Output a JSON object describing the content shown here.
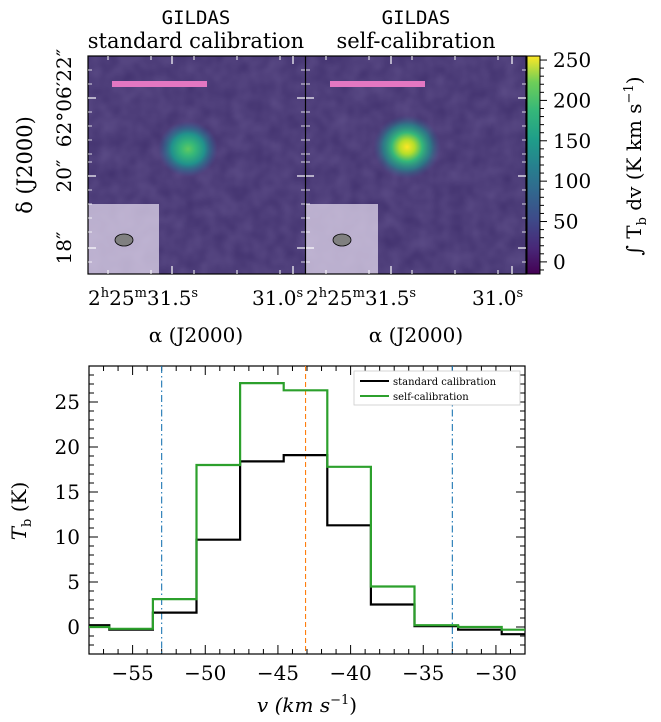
{
  "chart_data": [
    {
      "type": "heatmap",
      "panels": [
        {
          "title_line1": "GILDAS",
          "title_line2": "standard calibration",
          "peak": 150
        },
        {
          "title_line1": "GILDAS",
          "title_line2": "self-calibration",
          "peak": 250
        }
      ],
      "dec_ticks": [
        "62°06′22″",
        "20″",
        "18″"
      ],
      "ra_ticks": [
        {
          "h": "2",
          "m": "25",
          "s": "31.5",
          "hs": "h",
          "ms": "m",
          "ss": "s"
        },
        {
          "s": "31.0",
          "ss": "s"
        }
      ],
      "xlabel": "α (J2000)",
      "ylabel": "δ (J2000)",
      "colorbar": {
        "label": "∫ T",
        "label_sub": "b",
        "label_tail": " dv (K km s",
        "label_sup": "−1",
        "label_end": ")",
        "range": [
          -15,
          255
        ],
        "ticks": [
          0,
          50,
          100,
          150,
          200,
          250
        ],
        "colors": {
          "low": "#440154",
          "mid": "#21918c",
          "high": "#fde725"
        }
      },
      "scale_bar_color": "#e377c2"
    },
    {
      "type": "line",
      "step": true,
      "xlabel_main": "v (km s",
      "xlabel_sup": "−1",
      "xlabel_end": ")",
      "ylabel_main": "T",
      "ylabel_sub": "b",
      "ylabel_end": " (K)",
      "xlim": [
        -58,
        -28
      ],
      "ylim": [
        -3,
        29
      ],
      "xticks": [
        -55,
        -50,
        -45,
        -40,
        -35,
        -30
      ],
      "yticks": [
        0,
        5,
        10,
        15,
        20,
        25
      ],
      "tick_labels_x": [
        "−55",
        "−50",
        "−45",
        "−40",
        "−35",
        "−30"
      ],
      "tick_labels_y": [
        "0",
        "5",
        "10",
        "15",
        "20",
        "25"
      ],
      "x": [
        -58,
        -55.5,
        -52.5,
        -49.5,
        -46.5,
        -43.5,
        -40.5,
        -37.5,
        -34.5,
        -31.5,
        -28.5
      ],
      "bin_edges": [
        -58,
        -56.6,
        -53.6,
        -50.6,
        -47.6,
        -44.6,
        -41.6,
        -38.6,
        -35.6,
        -32.6,
        -29.6,
        -28
      ],
      "series": [
        {
          "name": "standard calibration",
          "color": "#000000",
          "values": [
            0.2,
            -0.3,
            1.6,
            9.7,
            18.4,
            19.1,
            11.3,
            2.5,
            0.1,
            -0.3,
            -0.8
          ]
        },
        {
          "name": "self-calibration",
          "color": "#2ca02c",
          "values": [
            0.0,
            -0.2,
            3.1,
            18.0,
            27.1,
            26.3,
            17.8,
            4.5,
            0.2,
            0.0,
            -0.3
          ]
        }
      ],
      "vlines": [
        {
          "x": -53.0,
          "style": "dashdot",
          "color": "#1f77b4"
        },
        {
          "x": -33.0,
          "style": "dashdot",
          "color": "#1f77b4"
        },
        {
          "x": -43.1,
          "style": "dashed",
          "color": "#ff7f0e"
        }
      ],
      "legend_position": "top-right"
    }
  ]
}
